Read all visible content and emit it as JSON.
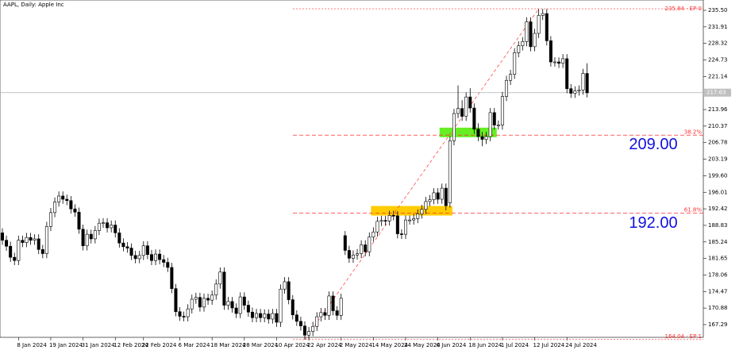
{
  "chart_data": {
    "type": "candlestick",
    "title": "AAPL, Daily: Apple Inc",
    "categories": [
      null,
      null,
      null,
      null,
      "8 Jan 2024",
      null,
      null,
      null,
      null,
      null,
      null,
      null,
      "19 Jan 2024",
      null,
      null,
      null,
      null,
      null,
      null,
      null,
      "31 Jan 2024",
      null,
      null,
      null,
      null,
      null,
      null,
      null,
      "12 Feb 2024",
      null,
      null,
      null,
      null,
      null,
      null,
      "22 Feb 2024",
      null,
      null,
      null,
      null,
      null,
      null,
      null,
      null,
      "6 Mar 2024",
      null,
      null,
      null,
      null,
      null,
      null,
      null,
      "18 Mar 2024",
      null,
      null,
      null,
      null,
      null,
      null,
      null,
      "28 Mar 2024",
      null,
      null,
      null,
      null,
      null,
      null,
      null,
      "10 Apr 2024",
      null,
      null,
      null,
      null,
      null,
      null,
      null,
      "22 Apr 2024",
      null,
      null,
      null,
      null,
      null,
      null,
      null,
      "2 May 2024",
      null,
      null,
      null,
      null,
      null,
      null,
      null,
      "14 May 2024",
      null,
      null,
      null,
      null,
      null,
      null,
      null,
      "24 May 2024",
      null,
      null,
      null,
      null,
      null,
      null,
      null,
      "6 Jun 2024",
      null,
      null,
      null,
      null,
      null,
      null,
      null,
      "18 Jun 2024",
      null,
      null,
      null,
      null,
      null,
      null,
      null,
      "1 Jul 2024",
      null,
      null,
      null,
      null,
      null,
      null,
      null,
      "12 Jul 2024",
      null,
      null,
      null,
      null,
      null,
      null,
      null,
      "24 Jul 2024",
      null,
      null,
      null,
      null,
      null
    ],
    "open": [
      187.2,
      185.6,
      184.3,
      181.9,
      181.2,
      185.6,
      185.1,
      186.2,
      185.6,
      185.9,
      183.6,
      182.7,
      188.6,
      191.6,
      193.9,
      195.2,
      194.5,
      194.2,
      192.4,
      191.7,
      188.0,
      184.4,
      186.9,
      185.9,
      187.7,
      189.3,
      189.4,
      188.3,
      188.9,
      187.2,
      185.0,
      184.2,
      183.9,
      182.3,
      181.6,
      182.3,
      184.4,
      182.5,
      181.2,
      182.6,
      181.4,
      180.8,
      179.7,
      175.1,
      170.1,
      169.1,
      169.0,
      170.7,
      172.8,
      173.2,
      171.1,
      173.0,
      172.6,
      173.7,
      176.1,
      178.7,
      171.5,
      172.3,
      170.9,
      169.7,
      173.3,
      171.5,
      170.0,
      168.8,
      169.7,
      168.8,
      169.6,
      168.5,
      169.7,
      167.8,
      175.0,
      176.6,
      172.7,
      169.4,
      168.0,
      167.0,
      165.0,
      165.8,
      166.9,
      169.0,
      169.9,
      169.3,
      173.5,
      170.3,
      169.3,
      186.6,
      183.4,
      181.7,
      182.4,
      182.7,
      184.6,
      183.1,
      186.3,
      187.4,
      189.7,
      189.9,
      189.8,
      191.0,
      190.9,
      187.0,
      186.9,
      190.0,
      190.0,
      190.3,
      191.3,
      192.3,
      194.0,
      194.4,
      195.9,
      194.5,
      196.9,
      193.7,
      207.2,
      213.1,
      214.2,
      212.5,
      216.7,
      214.3,
      209.7,
      208.1,
      207.5,
      208.1,
      213.3,
      210.6,
      210.6,
      216.8,
      220.3,
      221.6,
      226.3,
      227.8,
      228.7,
      233.0,
      227.6,
      230.5,
      234.4,
      234.8,
      228.9,
      224.3,
      224.3,
      224.0,
      225.0,
      218.5,
      217.5,
      218.0,
      218.2,
      221.8
    ],
    "high": [
      188.2,
      186.6,
      185.3,
      182.9,
      186.6,
      186.6,
      187.2,
      187.2,
      186.9,
      186.9,
      184.6,
      189.6,
      192.6,
      194.9,
      196.2,
      196.2,
      195.5,
      195.2,
      193.4,
      192.7,
      189.0,
      187.9,
      187.9,
      188.7,
      190.3,
      190.4,
      190.4,
      189.9,
      189.9,
      188.2,
      186.0,
      185.2,
      184.9,
      183.3,
      183.3,
      185.4,
      185.4,
      183.5,
      183.6,
      183.6,
      182.4,
      181.8,
      180.7,
      176.1,
      171.1,
      170.1,
      171.7,
      173.8,
      174.2,
      174.2,
      174.0,
      174.0,
      174.7,
      177.1,
      179.7,
      179.7,
      173.3,
      173.3,
      171.9,
      174.3,
      174.3,
      172.5,
      171.0,
      170.7,
      170.7,
      170.6,
      170.6,
      170.7,
      170.7,
      176.0,
      177.6,
      177.6,
      173.7,
      170.4,
      169.0,
      168.0,
      166.8,
      167.9,
      170.0,
      170.9,
      170.9,
      174.5,
      174.5,
      171.3,
      174.0,
      187.6,
      184.4,
      183.4,
      183.7,
      185.6,
      185.6,
      187.3,
      188.4,
      190.7,
      190.9,
      190.9,
      192.0,
      192.0,
      191.9,
      188.0,
      191.0,
      191.0,
      191.3,
      192.3,
      193.3,
      195.0,
      195.4,
      196.9,
      196.9,
      197.9,
      197.9,
      208.2,
      214.1,
      219.2,
      216.0,
      217.7,
      218.6,
      215.3,
      211.0,
      209.1,
      209.1,
      214.3,
      214.3,
      211.6,
      217.8,
      221.3,
      222.6,
      227.3,
      228.8,
      229.7,
      234.0,
      234.0,
      231.5,
      235.8,
      235.8,
      235.8,
      229.9,
      225.3,
      225.3,
      226.0,
      226.0,
      219.5,
      219.0,
      219.2,
      222.8,
      224.0
    ],
    "low": [
      184.6,
      183.3,
      180.9,
      180.2,
      180.2,
      184.1,
      184.1,
      184.6,
      184.6,
      182.6,
      181.7,
      181.7,
      187.6,
      190.6,
      192.9,
      193.5,
      193.2,
      191.4,
      190.7,
      187.0,
      183.4,
      183.4,
      184.9,
      184.9,
      186.7,
      188.3,
      187.3,
      187.3,
      186.2,
      184.0,
      183.2,
      182.9,
      181.3,
      180.6,
      180.6,
      181.3,
      181.5,
      180.2,
      180.2,
      180.4,
      179.8,
      178.7,
      174.1,
      169.1,
      168.1,
      168.0,
      168.0,
      169.7,
      171.8,
      170.1,
      170.1,
      171.6,
      171.6,
      172.7,
      175.1,
      170.5,
      170.5,
      169.9,
      168.7,
      168.7,
      170.5,
      169.0,
      167.8,
      167.8,
      167.8,
      167.8,
      167.5,
      167.5,
      166.8,
      166.8,
      174.0,
      171.7,
      168.4,
      167.0,
      166.0,
      164.0,
      164.0,
      164.8,
      165.9,
      168.0,
      168.3,
      168.3,
      169.3,
      168.3,
      168.3,
      182.4,
      180.7,
      180.7,
      181.4,
      181.7,
      182.1,
      182.1,
      185.3,
      186.4,
      188.7,
      188.8,
      188.8,
      189.9,
      186.0,
      185.9,
      185.9,
      189.0,
      189.0,
      189.3,
      190.3,
      191.3,
      193.0,
      193.4,
      193.5,
      193.5,
      192.1,
      192.7,
      206.2,
      212.1,
      211.5,
      211.5,
      213.3,
      208.7,
      207.1,
      206.0,
      206.5,
      207.1,
      209.6,
      209.6,
      209.6,
      215.8,
      219.3,
      220.6,
      225.3,
      226.8,
      227.7,
      226.6,
      226.6,
      229.5,
      233.4,
      227.9,
      223.3,
      223.3,
      223.0,
      223.0,
      217.5,
      216.5,
      216.5,
      217.0,
      217.2,
      216.6
    ],
    "close": [
      185.6,
      184.3,
      181.9,
      181.2,
      185.6,
      185.1,
      186.2,
      185.6,
      185.9,
      183.6,
      182.7,
      188.6,
      191.6,
      193.9,
      195.2,
      194.5,
      194.2,
      192.4,
      191.7,
      188.0,
      184.4,
      186.9,
      185.9,
      187.7,
      189.3,
      189.4,
      188.3,
      188.9,
      187.2,
      185.0,
      184.2,
      183.9,
      182.3,
      181.6,
      182.3,
      184.4,
      182.5,
      181.2,
      182.6,
      181.4,
      180.8,
      179.7,
      175.1,
      170.1,
      169.1,
      169.0,
      170.7,
      172.8,
      173.2,
      171.1,
      173.0,
      172.6,
      173.7,
      176.1,
      178.7,
      171.5,
      172.3,
      170.9,
      169.7,
      173.3,
      171.5,
      170.0,
      168.8,
      169.7,
      168.8,
      169.6,
      168.5,
      169.7,
      167.8,
      175.0,
      176.6,
      172.7,
      169.4,
      168.0,
      167.0,
      165.0,
      165.8,
      166.9,
      169.0,
      169.9,
      169.3,
      173.5,
      170.3,
      169.3,
      173.0,
      183.4,
      181.7,
      182.4,
      182.7,
      184.6,
      183.1,
      186.3,
      187.4,
      189.7,
      189.9,
      189.8,
      191.0,
      190.9,
      187.0,
      186.9,
      190.0,
      190.0,
      190.3,
      191.3,
      192.3,
      194.0,
      194.4,
      195.9,
      194.5,
      196.9,
      193.1,
      207.2,
      213.1,
      214.2,
      212.5,
      216.7,
      214.3,
      209.7,
      208.1,
      207.5,
      208.1,
      213.3,
      210.6,
      210.6,
      216.8,
      220.3,
      221.6,
      226.3,
      227.8,
      228.7,
      233.0,
      227.6,
      230.5,
      234.4,
      234.8,
      228.9,
      224.3,
      224.3,
      224.0,
      225.0,
      218.5,
      217.5,
      218.0,
      218.2,
      221.8,
      217.6
    ],
    "bull_color": "#ffffff",
    "bear_color": "#000000",
    "ylim": [
      164.53,
      237.74
    ],
    "yticks": [
      {
        "value": 235.5,
        "label": "235.50"
      },
      231.91,
      228.32,
      224.73,
      221.14,
      213.96,
      210.37,
      206.78,
      203.19,
      {
        "value": 199.6,
        "label": "199.60"
      },
      196.01,
      192.42,
      188.83,
      185.24,
      181.65,
      178.06,
      174.47,
      170.88,
      167.29
    ],
    "current_price": 217.63,
    "fibonacci": {
      "color": "#ff3030",
      "start": {
        "price": 164.04,
        "label": "164.04 · EP 1"
      },
      "end": {
        "price": 235.84,
        "label": "235.84 · EP 0"
      },
      "levels": [
        {
          "value": 38.2,
          "label": "38.2%"
        },
        {
          "value": 61.8,
          "label": "61.8%"
        }
      ]
    },
    "annotations": [
      {
        "value": 209,
        "label": "209.00",
        "zone_color": "#66ee22"
      },
      {
        "value": 192,
        "label": "192.00",
        "zone_color": "#ffcc00"
      }
    ],
    "annotation_color": "#1010e0"
  }
}
